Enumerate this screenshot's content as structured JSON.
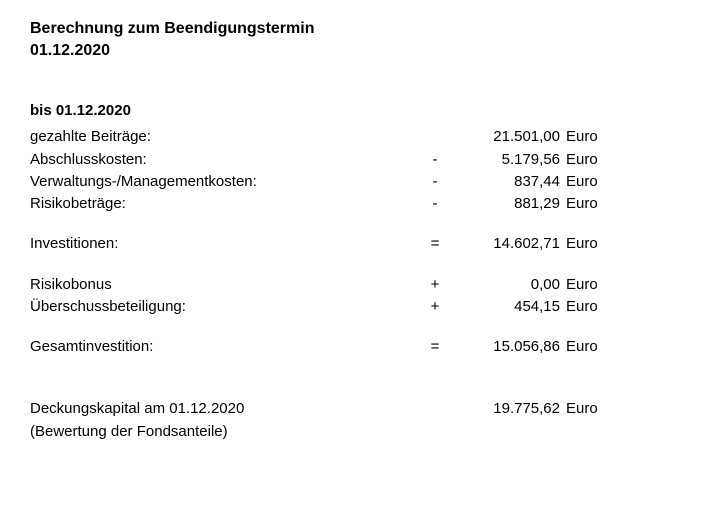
{
  "title_line1": "Berechnung zum Beendigungstermin",
  "title_line2": "01.12.2020",
  "subtitle": "bis 01.12.2020",
  "currency": "Euro",
  "rows": {
    "paid_contributions": {
      "label": "gezahlte Beiträge:",
      "op": "",
      "amount": "21.501,00"
    },
    "acquisition_costs": {
      "label": "Abschlusskosten:",
      "op": "-",
      "amount": "5.179,56"
    },
    "admin_costs": {
      "label": "Verwaltungs-/Managementkosten:",
      "op": "-",
      "amount": "837,44"
    },
    "risk_amounts": {
      "label": "Risikobeträge:",
      "op": "-",
      "amount": "881,29"
    },
    "investments": {
      "label": "Investitionen:",
      "op": "=",
      "amount": "14.602,71"
    },
    "risk_bonus": {
      "label": "Risikobonus",
      "op": "+",
      "amount": "0,00"
    },
    "surplus": {
      "label": "Überschussbeteiligung:",
      "op": "+",
      "amount": "454,15"
    },
    "total_investment": {
      "label": "Gesamtinvestition:",
      "op": "=",
      "amount": "15.056,86"
    },
    "coverage_capital": {
      "label": "Deckungskapital am 01.12.2020",
      "op": "",
      "amount": "19.775,62"
    }
  },
  "coverage_note": "(Bewertung der Fondsanteile)"
}
